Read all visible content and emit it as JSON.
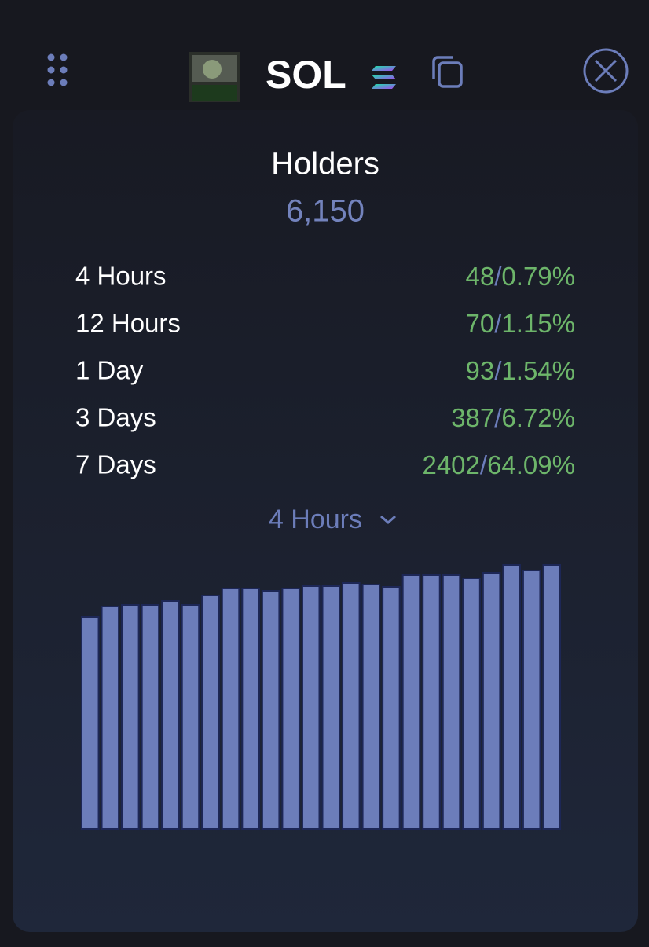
{
  "header": {
    "symbol": "SOL"
  },
  "holders": {
    "title": "Holders",
    "count": "6,150"
  },
  "separator": "/",
  "stats": [
    {
      "label": "4 Hours",
      "count": "48",
      "percent": "0.79%"
    },
    {
      "label": "12 Hours",
      "count": "70",
      "percent": "1.15%"
    },
    {
      "label": "1 Day",
      "count": "93",
      "percent": "1.54%"
    },
    {
      "label": "3 Days",
      "count": "387",
      "percent": "6.72%"
    },
    {
      "label": "7 Days",
      "count": "2402",
      "percent": "64.09%"
    }
  ],
  "period": "4 Hours",
  "chart_data": {
    "type": "bar",
    "color": "#6c7dba",
    "values": [
      270,
      283,
      285,
      285,
      290,
      285,
      297,
      306,
      306,
      303,
      306,
      309,
      309,
      313,
      311,
      308,
      323,
      323,
      323,
      319,
      326,
      336,
      329,
      336
    ]
  }
}
